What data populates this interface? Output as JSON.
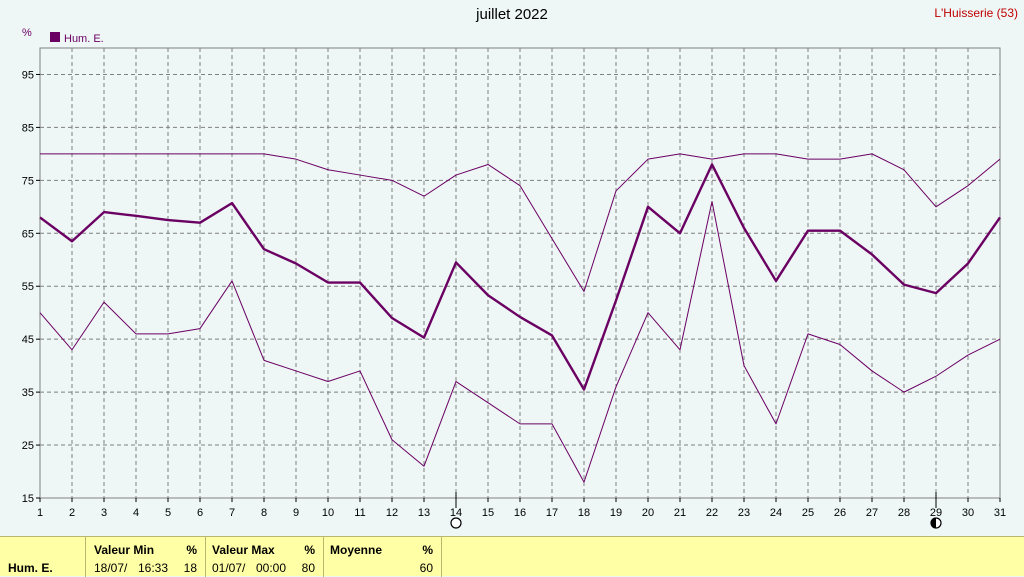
{
  "header": {
    "title": "juillet 2022",
    "station": "L'Huisserie (53)"
  },
  "colors": {
    "series": "#6b0063",
    "grid": "#808080",
    "background": "#eef6f6",
    "footer": "#ffffa6"
  },
  "chart_data": {
    "type": "line",
    "unit_label": "%",
    "legend": "Hum. E.",
    "x_ticks": [
      "1",
      "2",
      "3",
      "4",
      "5",
      "6",
      "7",
      "8",
      "9",
      "10",
      "11",
      "12",
      "13",
      "14",
      "15",
      "16",
      "17",
      "18",
      "19",
      "20",
      "21",
      "22",
      "23",
      "24",
      "25",
      "26",
      "27",
      "28",
      "29",
      "30",
      "31"
    ],
    "y_ticks": [
      "15",
      "25",
      "35",
      "45",
      "55",
      "65",
      "75",
      "85",
      "95"
    ],
    "ylim": [
      15,
      100
    ],
    "xlim": [
      1,
      31
    ],
    "grid": true,
    "moon_markers": {
      "new_moon_day": 14,
      "full_moon_day": 29
    },
    "series": [
      {
        "name": "Hum. E.",
        "role": "average",
        "values": [
          68,
          63.5,
          69,
          68.3,
          67.5,
          67,
          70.7,
          62,
          59.3,
          55.7,
          55.7,
          49,
          45.3,
          59.5,
          53.3,
          49.2,
          45.7,
          35.5,
          52.3,
          70,
          65,
          78,
          66,
          56,
          65.5,
          65.5,
          61,
          55.3,
          53.7,
          59.3,
          68
        ]
      },
      {
        "role": "max",
        "values": [
          80,
          80,
          80,
          80,
          80,
          80,
          80,
          80,
          79,
          77,
          76,
          75,
          72,
          76,
          78,
          74,
          64,
          54,
          73,
          79,
          80,
          79,
          80,
          80,
          79,
          79,
          80,
          77,
          70,
          74,
          79
        ]
      },
      {
        "role": "min",
        "values": [
          50,
          43,
          52,
          46,
          46,
          47,
          56,
          41,
          39,
          37,
          39,
          26,
          21,
          37,
          33,
          29,
          29,
          18,
          36,
          50,
          43,
          71,
          40,
          29,
          46,
          44,
          39,
          35,
          38,
          42,
          45
        ]
      }
    ]
  },
  "footer": {
    "row_label": "Hum. E.",
    "min": {
      "label": "Valeur Min",
      "unit": "%",
      "date": "18/07/",
      "time": "16:33",
      "value": "18"
    },
    "max": {
      "label": "Valeur Max",
      "unit": "%",
      "date": "01/07/",
      "time": "00:00",
      "value": "80"
    },
    "avg": {
      "label": "Moyenne",
      "unit": "%",
      "value": "60"
    }
  }
}
